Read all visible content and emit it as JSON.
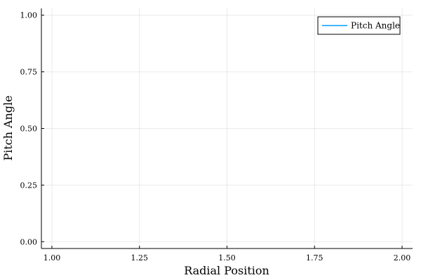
{
  "chart_data": {
    "type": "line",
    "title": "",
    "xlabel": "Radial Position",
    "ylabel": "Pitch Angle",
    "xlim": [
      0.97,
      2.03
    ],
    "ylim": [
      -0.03,
      1.03
    ],
    "xticks": [
      1.0,
      1.25,
      1.5,
      1.75,
      2.0
    ],
    "xtick_labels": [
      "1.00",
      "1.25",
      "1.50",
      "1.75",
      "2.00"
    ],
    "yticks": [
      0.0,
      0.25,
      0.5,
      0.75,
      1.0
    ],
    "ytick_labels": [
      "0.00",
      "0.25",
      "0.50",
      "0.75",
      "1.00"
    ],
    "grid": true,
    "legend_position": "top-right",
    "series": [
      {
        "name": "Pitch Angle",
        "color": "#009AFA",
        "x": [],
        "y": []
      }
    ]
  }
}
